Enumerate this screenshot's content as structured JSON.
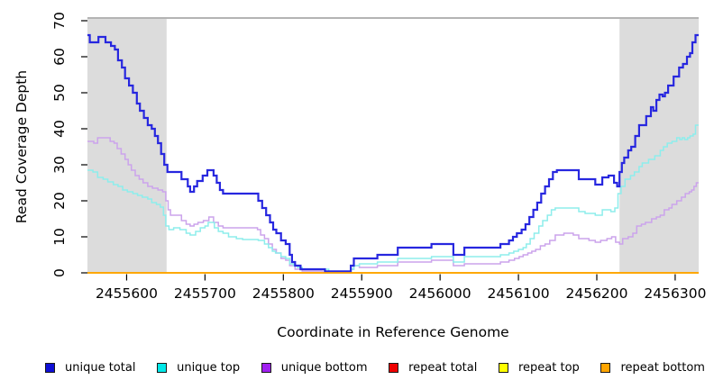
{
  "figure": {
    "xlabel": "Coordinate in Reference Genome",
    "ylabel": "Read Coverage Depth"
  },
  "chart_data": {
    "type": "line",
    "subtype": "step",
    "title": "",
    "xlabel": "Coordinate in Reference Genome",
    "ylabel": "Read Coverage Depth",
    "xlim": [
      2455550,
      2456330
    ],
    "ylim": [
      0,
      70
    ],
    "x_ticks": [
      2455600,
      2455700,
      2455800,
      2455900,
      2456000,
      2456100,
      2456200,
      2456300
    ],
    "y_ticks": [
      0,
      10,
      20,
      30,
      40,
      50,
      60,
      70
    ],
    "grid": false,
    "legend_position": "bottom",
    "frame_top_line_color": "#9b9b9b",
    "shaded_regions": [
      {
        "x0": 2455550,
        "x1": 2455651,
        "color": "#dcdcdc"
      },
      {
        "x0": 2456229,
        "x1": 2456330,
        "color": "#dcdcdc"
      }
    ],
    "draw_order": [
      3,
      4,
      2,
      1,
      0,
      5
    ],
    "series": [
      {
        "name": "unique total",
        "line_color": "#2727df",
        "swatch_color": "#0f0fd6",
        "line_width": 2.2,
        "points": [
          [
            2455550,
            66
          ],
          [
            2455553,
            64
          ],
          [
            2455562,
            64
          ],
          [
            2455564,
            65.5
          ],
          [
            2455571,
            65.5
          ],
          [
            2455573,
            64
          ],
          [
            2455580,
            63
          ],
          [
            2455585,
            62
          ],
          [
            2455589,
            59
          ],
          [
            2455594,
            57
          ],
          [
            2455598,
            54
          ],
          [
            2455603,
            52
          ],
          [
            2455608,
            50
          ],
          [
            2455613,
            47
          ],
          [
            2455617,
            45
          ],
          [
            2455622,
            43
          ],
          [
            2455627,
            41
          ],
          [
            2455632,
            40
          ],
          [
            2455636,
            38
          ],
          [
            2455640,
            36
          ],
          [
            2455644,
            33
          ],
          [
            2455648,
            30
          ],
          [
            2455652,
            28
          ],
          [
            2455670,
            26
          ],
          [
            2455678,
            24
          ],
          [
            2455681,
            22.5
          ],
          [
            2455686,
            24
          ],
          [
            2455690,
            25.5
          ],
          [
            2455697,
            27
          ],
          [
            2455703,
            28.5
          ],
          [
            2455711,
            27
          ],
          [
            2455715,
            25
          ],
          [
            2455719,
            23
          ],
          [
            2455723,
            22
          ],
          [
            2455768,
            20
          ],
          [
            2455773,
            18
          ],
          [
            2455778,
            16
          ],
          [
            2455783,
            14
          ],
          [
            2455787,
            12
          ],
          [
            2455791,
            11
          ],
          [
            2455797,
            9
          ],
          [
            2455803,
            8
          ],
          [
            2455808,
            5
          ],
          [
            2455811,
            3
          ],
          [
            2455815,
            2
          ],
          [
            2455822,
            1
          ],
          [
            2455853,
            0.4
          ],
          [
            2455886,
            2
          ],
          [
            2455890,
            4
          ],
          [
            2455920,
            5
          ],
          [
            2455946,
            7
          ],
          [
            2455989,
            8
          ],
          [
            2456017,
            5
          ],
          [
            2456031,
            7
          ],
          [
            2456077,
            8
          ],
          [
            2456088,
            9
          ],
          [
            2456093,
            10
          ],
          [
            2456098,
            11
          ],
          [
            2456104,
            12
          ],
          [
            2456109,
            13.5
          ],
          [
            2456114,
            15.5
          ],
          [
            2456119,
            17.5
          ],
          [
            2456124,
            19.5
          ],
          [
            2456129,
            22
          ],
          [
            2456134,
            24
          ],
          [
            2456139,
            26
          ],
          [
            2456144,
            28
          ],
          [
            2456149,
            28.5
          ],
          [
            2456177,
            26
          ],
          [
            2456198,
            24.5
          ],
          [
            2456207,
            26.5
          ],
          [
            2456215,
            27
          ],
          [
            2456222,
            25
          ],
          [
            2456226,
            24
          ],
          [
            2456229,
            28
          ],
          [
            2456232,
            30.5
          ],
          [
            2456235,
            32
          ],
          [
            2456240,
            34
          ],
          [
            2456244,
            35
          ],
          [
            2456249,
            38
          ],
          [
            2456254,
            41
          ],
          [
            2456263,
            43.5
          ],
          [
            2456269,
            46
          ],
          [
            2456272,
            45
          ],
          [
            2456276,
            48
          ],
          [
            2456280,
            49.5
          ],
          [
            2456284,
            49
          ],
          [
            2456287,
            50
          ],
          [
            2456291,
            52
          ],
          [
            2456298,
            54.5
          ],
          [
            2456305,
            57
          ],
          [
            2456310,
            58
          ],
          [
            2456315,
            60
          ],
          [
            2456319,
            61
          ],
          [
            2456322,
            64
          ],
          [
            2456326,
            66
          ]
        ]
      },
      {
        "name": "unique top",
        "line_color": "#8dedec",
        "swatch_color": "#00e8e8",
        "line_width": 1.5,
        "points": [
          [
            2455550,
            28.5
          ],
          [
            2455557,
            28
          ],
          [
            2455563,
            26.5
          ],
          [
            2455570,
            26
          ],
          [
            2455576,
            25.25
          ],
          [
            2455583,
            24.5
          ],
          [
            2455589,
            24
          ],
          [
            2455595,
            23
          ],
          [
            2455601,
            22.5
          ],
          [
            2455608,
            22
          ],
          [
            2455614,
            21.5
          ],
          [
            2455620,
            21
          ],
          [
            2455627,
            20.5
          ],
          [
            2455632,
            19.5
          ],
          [
            2455638,
            19
          ],
          [
            2455643,
            18.25
          ],
          [
            2455647,
            16
          ],
          [
            2455650,
            13
          ],
          [
            2455654,
            12
          ],
          [
            2455660,
            12.5
          ],
          [
            2455668,
            12
          ],
          [
            2455676,
            11
          ],
          [
            2455681,
            10.5
          ],
          [
            2455688,
            11.5
          ],
          [
            2455694,
            12.5
          ],
          [
            2455700,
            13
          ],
          [
            2455704,
            14
          ],
          [
            2455712,
            12.5
          ],
          [
            2455717,
            11.5
          ],
          [
            2455723,
            11
          ],
          [
            2455730,
            10
          ],
          [
            2455740,
            9.5
          ],
          [
            2455748,
            9.25
          ],
          [
            2455768,
            9
          ],
          [
            2455776,
            8
          ],
          [
            2455781,
            7
          ],
          [
            2455786,
            6
          ],
          [
            2455790,
            5.5
          ],
          [
            2455797,
            4.5
          ],
          [
            2455803,
            4
          ],
          [
            2455808,
            2.5
          ],
          [
            2455813,
            2
          ],
          [
            2455818,
            1.5
          ],
          [
            2455824,
            1
          ],
          [
            2455858,
            0
          ],
          [
            2455886,
            1
          ],
          [
            2455890,
            2
          ],
          [
            2455897,
            2.5
          ],
          [
            2455920,
            3
          ],
          [
            2455946,
            4
          ],
          [
            2455989,
            4.5
          ],
          [
            2456017,
            3
          ],
          [
            2456031,
            4.5
          ],
          [
            2456077,
            5
          ],
          [
            2456088,
            5.5
          ],
          [
            2456094,
            6
          ],
          [
            2456100,
            6.5
          ],
          [
            2456106,
            7
          ],
          [
            2456110,
            8
          ],
          [
            2456115,
            9.5
          ],
          [
            2456120,
            11
          ],
          [
            2456126,
            13
          ],
          [
            2456131,
            14.5
          ],
          [
            2456137,
            16
          ],
          [
            2456142,
            17.5
          ],
          [
            2456147,
            18
          ],
          [
            2456177,
            17
          ],
          [
            2456185,
            16.5
          ],
          [
            2456198,
            16
          ],
          [
            2456207,
            17.5
          ],
          [
            2456218,
            17
          ],
          [
            2456223,
            18
          ],
          [
            2456227,
            22
          ],
          [
            2456231,
            24
          ],
          [
            2456236,
            26
          ],
          [
            2456243,
            27
          ],
          [
            2456248,
            28
          ],
          [
            2456254,
            29.5
          ],
          [
            2456258,
            30.5
          ],
          [
            2456266,
            31.5
          ],
          [
            2456274,
            32.5
          ],
          [
            2456281,
            34
          ],
          [
            2456285,
            35
          ],
          [
            2456290,
            36
          ],
          [
            2456296,
            36.5
          ],
          [
            2456302,
            37.5
          ],
          [
            2456306,
            37
          ],
          [
            2456309,
            37.5
          ],
          [
            2456312,
            37
          ],
          [
            2456316,
            37.5
          ],
          [
            2456319,
            38
          ],
          [
            2456323,
            38.5
          ],
          [
            2456326,
            41
          ]
        ]
      },
      {
        "name": "unique bottom",
        "line_color": "#cba3ec",
        "swatch_color": "#a020f0",
        "line_width": 1.5,
        "points": [
          [
            2455550,
            36.5
          ],
          [
            2455558,
            36
          ],
          [
            2455563,
            37.5
          ],
          [
            2455574,
            37.5
          ],
          [
            2455579,
            36.5
          ],
          [
            2455584,
            36
          ],
          [
            2455588,
            34.5
          ],
          [
            2455593,
            33
          ],
          [
            2455598,
            31.5
          ],
          [
            2455602,
            30
          ],
          [
            2455606,
            28.5
          ],
          [
            2455611,
            27
          ],
          [
            2455616,
            26
          ],
          [
            2455621,
            25
          ],
          [
            2455627,
            24
          ],
          [
            2455633,
            23.5
          ],
          [
            2455640,
            23
          ],
          [
            2455646,
            22.5
          ],
          [
            2455650,
            20
          ],
          [
            2455653,
            17.5
          ],
          [
            2455656,
            16
          ],
          [
            2455670,
            14.5
          ],
          [
            2455676,
            13.5
          ],
          [
            2455681,
            13
          ],
          [
            2455686,
            13.5
          ],
          [
            2455691,
            14
          ],
          [
            2455698,
            14.5
          ],
          [
            2455705,
            15.5
          ],
          [
            2455711,
            14
          ],
          [
            2455717,
            13
          ],
          [
            2455723,
            12.5
          ],
          [
            2455767,
            12
          ],
          [
            2455771,
            10.5
          ],
          [
            2455776,
            9.5
          ],
          [
            2455781,
            8
          ],
          [
            2455786,
            6.5
          ],
          [
            2455791,
            5.5
          ],
          [
            2455797,
            4
          ],
          [
            2455803,
            3.5
          ],
          [
            2455808,
            2
          ],
          [
            2455815,
            1
          ],
          [
            2455824,
            0.5
          ],
          [
            2455850,
            0
          ],
          [
            2455886,
            1
          ],
          [
            2455890,
            2
          ],
          [
            2455897,
            1.5
          ],
          [
            2455920,
            2
          ],
          [
            2455946,
            3
          ],
          [
            2455989,
            3.5
          ],
          [
            2456017,
            2
          ],
          [
            2456031,
            2.5
          ],
          [
            2456077,
            3
          ],
          [
            2456088,
            3.5
          ],
          [
            2456095,
            4
          ],
          [
            2456101,
            4.5
          ],
          [
            2456106,
            5
          ],
          [
            2456112,
            5.5
          ],
          [
            2456117,
            6
          ],
          [
            2456122,
            6.5
          ],
          [
            2456128,
            7.5
          ],
          [
            2456134,
            8
          ],
          [
            2456140,
            9
          ],
          [
            2456147,
            10.5
          ],
          [
            2456158,
            11
          ],
          [
            2456170,
            10.5
          ],
          [
            2456177,
            9.5
          ],
          [
            2456190,
            9
          ],
          [
            2456198,
            8.5
          ],
          [
            2456205,
            9
          ],
          [
            2456213,
            9.5
          ],
          [
            2456219,
            10
          ],
          [
            2456224,
            8.5
          ],
          [
            2456229,
            8
          ],
          [
            2456233,
            9.5
          ],
          [
            2456240,
            10
          ],
          [
            2456246,
            11
          ],
          [
            2456251,
            13
          ],
          [
            2456257,
            13.5
          ],
          [
            2456262,
            14
          ],
          [
            2456270,
            15
          ],
          [
            2456276,
            15.5
          ],
          [
            2456281,
            16
          ],
          [
            2456286,
            17.5
          ],
          [
            2456292,
            18
          ],
          [
            2456296,
            19
          ],
          [
            2456302,
            20
          ],
          [
            2456308,
            21
          ],
          [
            2456313,
            22
          ],
          [
            2456318,
            22.5
          ],
          [
            2456321,
            23
          ],
          [
            2456324,
            24
          ],
          [
            2456327,
            25
          ]
        ]
      },
      {
        "name": "repeat total",
        "line_color": "#e60000",
        "swatch_color": "#ee0000",
        "line_width": 1.5,
        "points": [
          [
            2455550,
            0
          ]
        ]
      },
      {
        "name": "repeat top",
        "line_color": "#ffff00",
        "swatch_color": "#ffff00",
        "line_width": 1.5,
        "points": [
          [
            2455550,
            0
          ]
        ]
      },
      {
        "name": "repeat bottom",
        "line_color": "#ffa500",
        "swatch_color": "#ffa500",
        "line_width": 1.8,
        "points": [
          [
            2455550,
            0
          ]
        ]
      }
    ]
  }
}
